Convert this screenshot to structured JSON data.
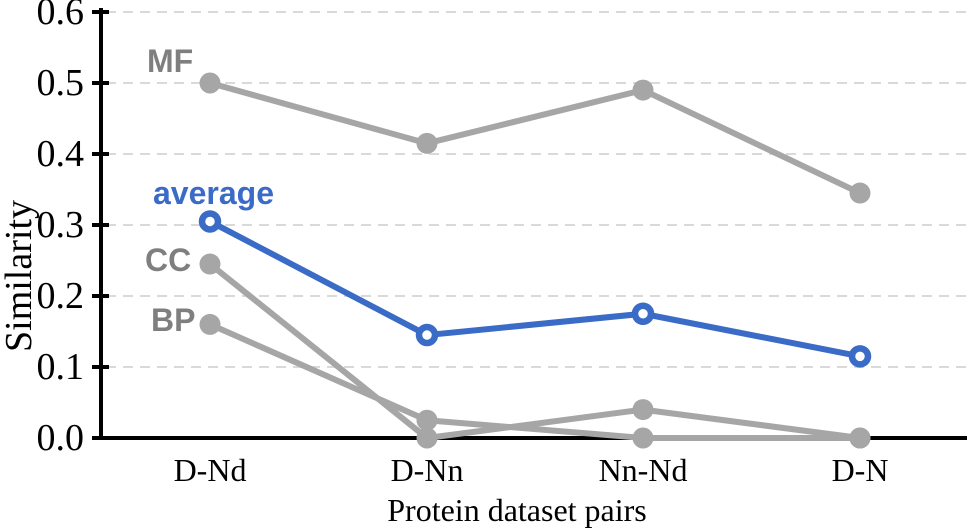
{
  "chart_data": {
    "type": "line",
    "title": "",
    "xlabel": "Protein dataset pairs",
    "ylabel": "Similarity",
    "categories": [
      "D-Nd",
      "D-Nn",
      "Nn-Nd",
      "D-N"
    ],
    "series": [
      {
        "name": "MF",
        "values": [
          0.5,
          0.415,
          0.49,
          0.345
        ],
        "color": "#a6a6a6",
        "label_color": "#7f7f7f",
        "marker": "filled"
      },
      {
        "name": "CC",
        "values": [
          0.245,
          0.0,
          0.04,
          0.0
        ],
        "color": "#a6a6a6",
        "label_color": "#7f7f7f",
        "marker": "filled"
      },
      {
        "name": "BP",
        "values": [
          0.16,
          0.025,
          0.0,
          0.0
        ],
        "color": "#a6a6a6",
        "label_color": "#7f7f7f",
        "marker": "filled"
      },
      {
        "name": "average",
        "values": [
          0.305,
          0.145,
          0.175,
          0.115
        ],
        "color": "#3a6bc6",
        "label_color": "#3a6bc6",
        "marker": "open"
      }
    ],
    "y_ticks": [
      "0.0",
      "0.1",
      "0.2",
      "0.3",
      "0.4",
      "0.5",
      "0.6"
    ],
    "ylim": [
      0,
      0.6
    ],
    "grid": "horizontal-dashed",
    "grid_color": "#d9d9d9",
    "axis_color": "#000000",
    "legend_position": "inline-labels-left"
  }
}
